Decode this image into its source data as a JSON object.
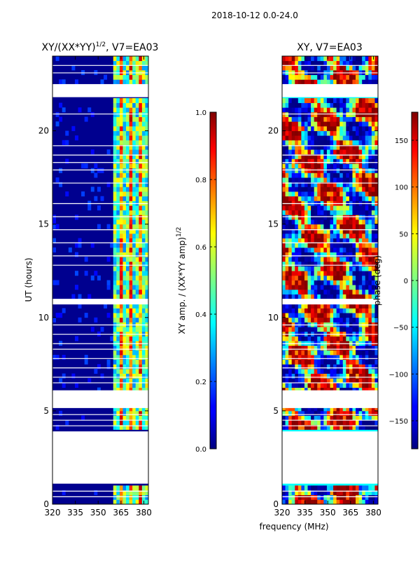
{
  "figure": {
    "suptitle": "2018-10-12 0.0-24.0",
    "shared_xlabel": "frequency (MHz)"
  },
  "chart_data": [
    {
      "type": "heatmap",
      "title": "XY/(XX*YY)",
      "title_sup": "1/2",
      "title_suffix": ", V7=EA03",
      "ylabel": "UT (hours)",
      "xlim": [
        320,
        383
      ],
      "ylim": [
        0,
        24
      ],
      "xticks": [
        "320",
        "335",
        "350",
        "365",
        "380"
      ],
      "xtick_values": [
        320,
        335,
        350,
        365,
        380
      ],
      "yticks": [
        "0",
        "5",
        "10",
        "15",
        "20"
      ],
      "ytick_values": [
        0,
        5,
        10,
        15,
        20
      ],
      "rfi_band_mhz": [
        360,
        382
      ],
      "data_gaps_hours": [
        [
          1.1,
          3.9
        ],
        [
          5.15,
          6.1
        ],
        [
          21.8,
          22.5
        ],
        [
          10.7,
          11.0
        ]
      ],
      "colorbar": {
        "label": "XY amp. / (XX*YY amp)",
        "label_sup": "1/2",
        "range": [
          0.0,
          1.0
        ],
        "ticks": [
          "0.0",
          "0.2",
          "0.4",
          "0.6",
          "0.8",
          "1.0"
        ],
        "tick_values": [
          0.0,
          0.2,
          0.4,
          0.6,
          0.8,
          1.0
        ]
      }
    },
    {
      "type": "heatmap",
      "title": "XY, V7=EA03",
      "xlim": [
        320,
        383
      ],
      "ylim": [
        0,
        24
      ],
      "xticks": [
        "320",
        "335",
        "350",
        "365",
        "380"
      ],
      "xtick_values": [
        320,
        335,
        350,
        365,
        380
      ],
      "yticks": [
        "0",
        "5",
        "10",
        "15",
        "20"
      ],
      "ytick_values": [
        0,
        5,
        10,
        15,
        20
      ],
      "data_gaps_hours": [
        [
          1.1,
          3.9
        ],
        [
          5.15,
          6.1
        ],
        [
          21.8,
          22.5
        ],
        [
          10.7,
          11.0
        ]
      ],
      "colorbar": {
        "label": "phase (deg)",
        "range": [
          -180,
          180
        ],
        "ticks": [
          "−150",
          "−100",
          "−50",
          "0",
          "50",
          "100",
          "150"
        ],
        "tick_values": [
          -150,
          -100,
          -50,
          0,
          50,
          100,
          150
        ]
      }
    }
  ]
}
